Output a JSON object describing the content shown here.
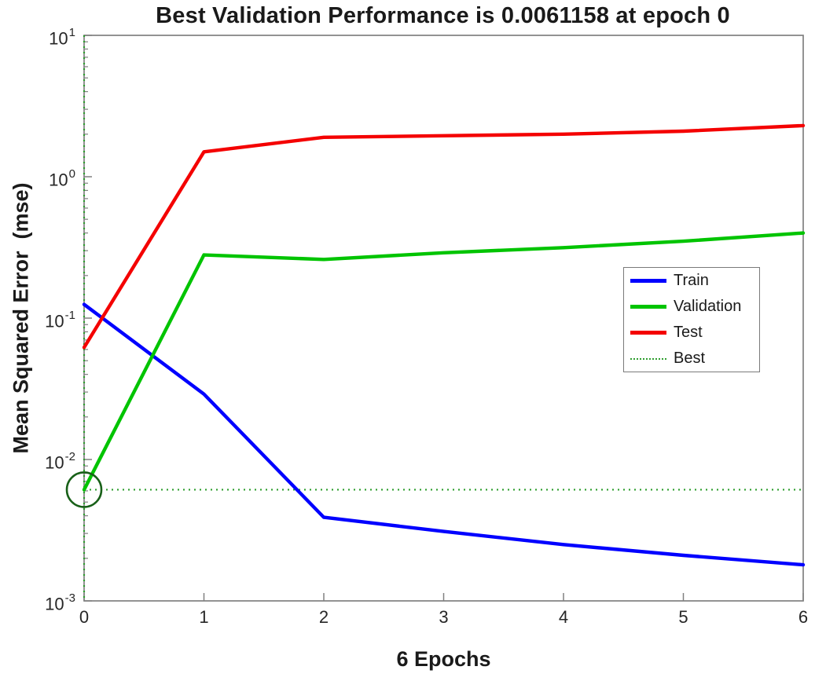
{
  "chart_data": {
    "type": "line",
    "title": "Best Validation Performance is 0.0061158 at epoch 0",
    "xlabel": "6 Epochs",
    "ylabel": "Mean Squared Error  (mse)",
    "yscale": "log",
    "xlim": [
      0,
      6
    ],
    "ylim": [
      0.001,
      10
    ],
    "x_ticks": [
      "0",
      "1",
      "2",
      "3",
      "4",
      "5",
      "6"
    ],
    "y_ticks": [
      {
        "base": "10",
        "exp": "1",
        "value": 10
      },
      {
        "base": "10",
        "exp": "0",
        "value": 1
      },
      {
        "base": "10",
        "exp": "-1",
        "value": 0.1
      },
      {
        "base": "10",
        "exp": "-2",
        "value": 0.01
      },
      {
        "base": "10",
        "exp": "-3",
        "value": 0.001
      }
    ],
    "x": [
      0,
      1,
      2,
      3,
      4,
      5,
      6
    ],
    "series": [
      {
        "name": "Train",
        "color": "#0000ff",
        "values": [
          0.125,
          0.029,
          0.0039,
          0.0031,
          0.0025,
          0.0021,
          0.0018
        ]
      },
      {
        "name": "Validation",
        "color": "#00c400",
        "values": [
          0.0061158,
          0.28,
          0.26,
          0.29,
          0.315,
          0.35,
          0.4
        ]
      },
      {
        "name": "Test",
        "color": "#f40000",
        "values": [
          0.062,
          1.5,
          1.9,
          1.95,
          2.0,
          2.1,
          2.3
        ]
      }
    ],
    "best": {
      "label": "Best",
      "value": 0.0061158,
      "epoch": 0,
      "color": "#2e9e2e",
      "style": "dotted"
    },
    "marker": {
      "shape": "circle",
      "epoch": 0,
      "value": 0.0061158,
      "color": "#186018"
    },
    "legend": {
      "entries": [
        "Train",
        "Validation",
        "Test",
        "Best"
      ],
      "position": "right-center"
    },
    "axis_color": "#808080",
    "tick_color": "#262626",
    "grid": false
  }
}
